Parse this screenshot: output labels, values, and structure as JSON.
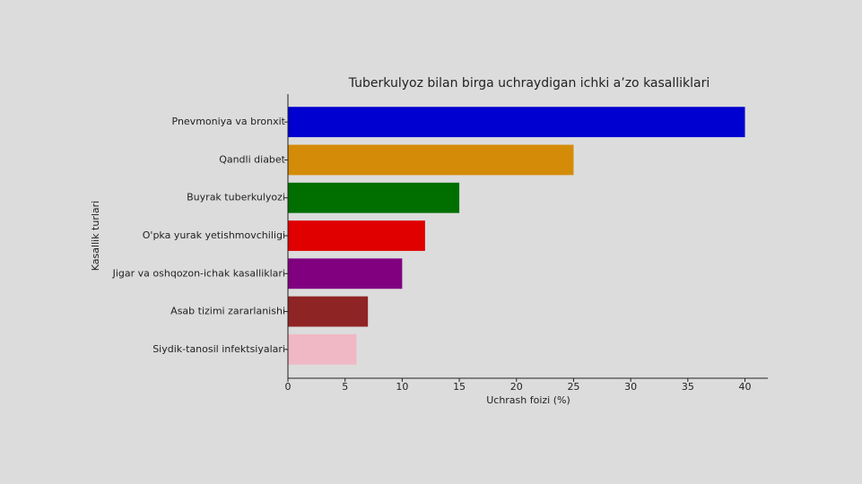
{
  "chart_data": {
    "type": "barh",
    "title": "Tuberkulyoz bilan birga uchraydigan ichki a’zo kasalliklari",
    "x_label": "Uchrash foizi (%)",
    "y_label": "Kasallik turlari",
    "categories": [
      "Pnevmoniya va bronxit",
      "Qandli diabet",
      "Buyrak tuberkulyozi",
      "O'pka yurak yetishmovchiligi",
      "Jigar va oshqozon-ichak kasalliklari",
      "Asab tizimi zararlanishi",
      "Siydik-tanosil infektsiyalari"
    ],
    "values": [
      40,
      25,
      15,
      12,
      10,
      7,
      6
    ],
    "colors": [
      "#0000d0",
      "#d48c08",
      "#006f00",
      "#e00000",
      "#800080",
      "#8f2424",
      "#f0b8c4"
    ],
    "xlim": [
      0,
      42
    ],
    "xticks": [
      0,
      5,
      10,
      15,
      20,
      25,
      30,
      35,
      40
    ]
  }
}
